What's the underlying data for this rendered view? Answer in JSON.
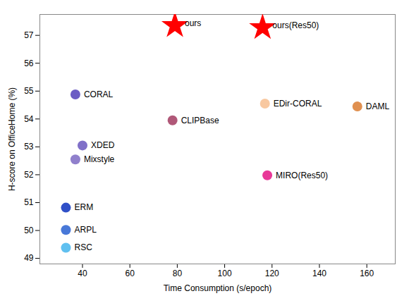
{
  "chart_data": {
    "type": "scatter",
    "xlabel": "Time Consumption (s/epoch)",
    "ylabel": "H-score on OfficeHome (%)",
    "series": [
      {
        "name": "ours",
        "color": "#ff0000",
        "marker": "star",
        "x": [
          79
        ],
        "values": [
          57.35
        ]
      },
      {
        "name": "ours(Res50)",
        "color": "#ff0000",
        "marker": "star",
        "x": [
          116
        ],
        "values": [
          57.28
        ]
      },
      {
        "name": "CORAL",
        "color": "#6b5cc4",
        "marker": "circle",
        "x": [
          37
        ],
        "values": [
          54.88
        ]
      },
      {
        "name": "CLIPBase",
        "color": "#b05878",
        "marker": "circle",
        "x": [
          78
        ],
        "values": [
          53.95
        ]
      },
      {
        "name": "EDir-CORAL",
        "color": "#f8c8a0",
        "marker": "circle",
        "x": [
          117
        ],
        "values": [
          54.55
        ]
      },
      {
        "name": "DAML",
        "color": "#e09050",
        "marker": "circle",
        "x": [
          156
        ],
        "values": [
          54.45
        ]
      },
      {
        "name": "XDED",
        "color": "#8070c8",
        "marker": "circle",
        "x": [
          40
        ],
        "values": [
          53.05
        ]
      },
      {
        "name": "Mixstyle",
        "color": "#9080cc",
        "marker": "circle",
        "x": [
          37
        ],
        "values": [
          52.55
        ]
      },
      {
        "name": "MIRO(Res50)",
        "color": "#e83898",
        "marker": "circle",
        "x": [
          118
        ],
        "values": [
          51.98
        ]
      },
      {
        "name": "ERM",
        "color": "#3050c8",
        "marker": "circle",
        "x": [
          33
        ],
        "values": [
          50.82
        ]
      },
      {
        "name": "ARPL",
        "color": "#4878d8",
        "marker": "circle",
        "x": [
          33
        ],
        "values": [
          50.02
        ]
      },
      {
        "name": "RSC",
        "color": "#60c0f0",
        "marker": "circle",
        "x": [
          33
        ],
        "values": [
          49.38
        ]
      }
    ],
    "xlim": [
      22,
      172
    ],
    "ylim": [
      48.8,
      57.75
    ],
    "xticks": [
      40,
      60,
      80,
      100,
      120,
      140,
      160
    ],
    "yticks": [
      49,
      50,
      51,
      52,
      53,
      54,
      55,
      56,
      57
    ]
  }
}
